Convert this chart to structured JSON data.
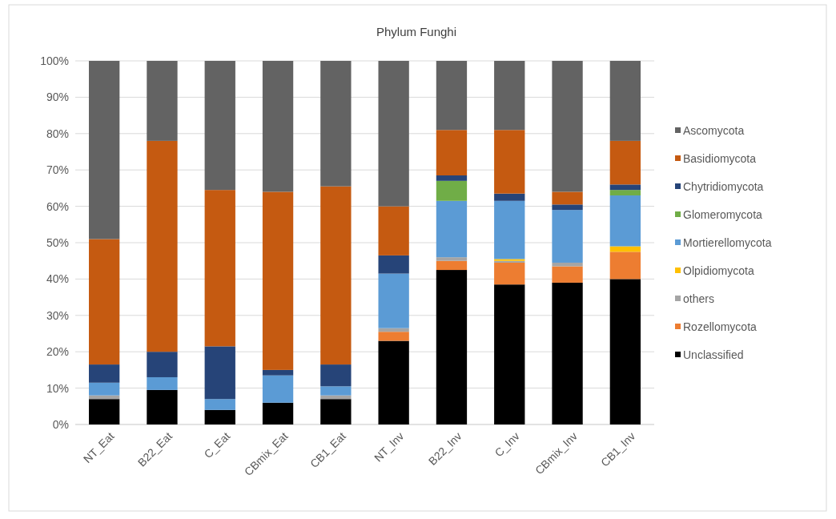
{
  "chart_data": {
    "type": "bar",
    "title": "Phylum Funghi",
    "stacked": true,
    "categories": [
      "NT_Eat",
      "B22_Eat",
      "C_Eat",
      "CBmix_Eat",
      "CB1_Eat",
      "NT_Inv",
      "B22_Inv",
      "C_Inv",
      "CBmix_Inv",
      "CB1_Inv"
    ],
    "series": [
      {
        "name": "Unclassified",
        "color": "#000000",
        "values": [
          7,
          9.5,
          4,
          6,
          7,
          23,
          42.5,
          38.5,
          39,
          40
        ]
      },
      {
        "name": "Rozellomycota",
        "color": "#ed7d31",
        "values": [
          0,
          0,
          0,
          0,
          0,
          2.5,
          2.5,
          6,
          4.5,
          7.5
        ]
      },
      {
        "name": "others",
        "color": "#a5a5a5",
        "values": [
          1,
          0,
          0,
          0,
          1,
          1,
          1,
          0.5,
          1,
          0
        ]
      },
      {
        "name": "Olpidiomycota",
        "color": "#ffc000",
        "values": [
          0,
          0,
          0,
          0,
          0,
          0,
          0,
          0.5,
          0,
          1.5
        ]
      },
      {
        "name": "Mortierellomycota",
        "color": "#5b9bd5",
        "values": [
          3.5,
          3.5,
          3,
          7.5,
          2.5,
          15,
          15.5,
          16,
          14.5,
          14
        ]
      },
      {
        "name": "Glomeromycota",
        "color": "#70ad47",
        "values": [
          0,
          0,
          0,
          0,
          0,
          0,
          5.5,
          0,
          0,
          1.5
        ]
      },
      {
        "name": "Chytridiomycota",
        "color": "#264478",
        "values": [
          5,
          7,
          14.5,
          1.5,
          6,
          5,
          1.5,
          2,
          1.5,
          1.5
        ]
      },
      {
        "name": "Basidiomycota",
        "color": "#c55a11",
        "values": [
          34.5,
          58,
          43,
          49,
          49,
          13.5,
          12.5,
          17.5,
          3.5,
          12
        ]
      },
      {
        "name": "Ascomycota",
        "color": "#636363",
        "values": [
          49,
          22,
          35.5,
          36,
          34.5,
          40,
          19,
          19,
          36,
          22
        ]
      }
    ],
    "ylim": [
      0,
      100
    ],
    "yticks": [
      {
        "value": 0,
        "label": "0%"
      },
      {
        "value": 10,
        "label": "10%"
      },
      {
        "value": 20,
        "label": "20%"
      },
      {
        "value": 30,
        "label": "30%"
      },
      {
        "value": 40,
        "label": "40%"
      },
      {
        "value": 50,
        "label": "50%"
      },
      {
        "value": 60,
        "label": "60%"
      },
      {
        "value": 70,
        "label": "70%"
      },
      {
        "value": 80,
        "label": "80%"
      },
      {
        "value": 90,
        "label": "90%"
      },
      {
        "value": 100,
        "label": "100%"
      }
    ],
    "grid": "y",
    "legend": "right"
  }
}
